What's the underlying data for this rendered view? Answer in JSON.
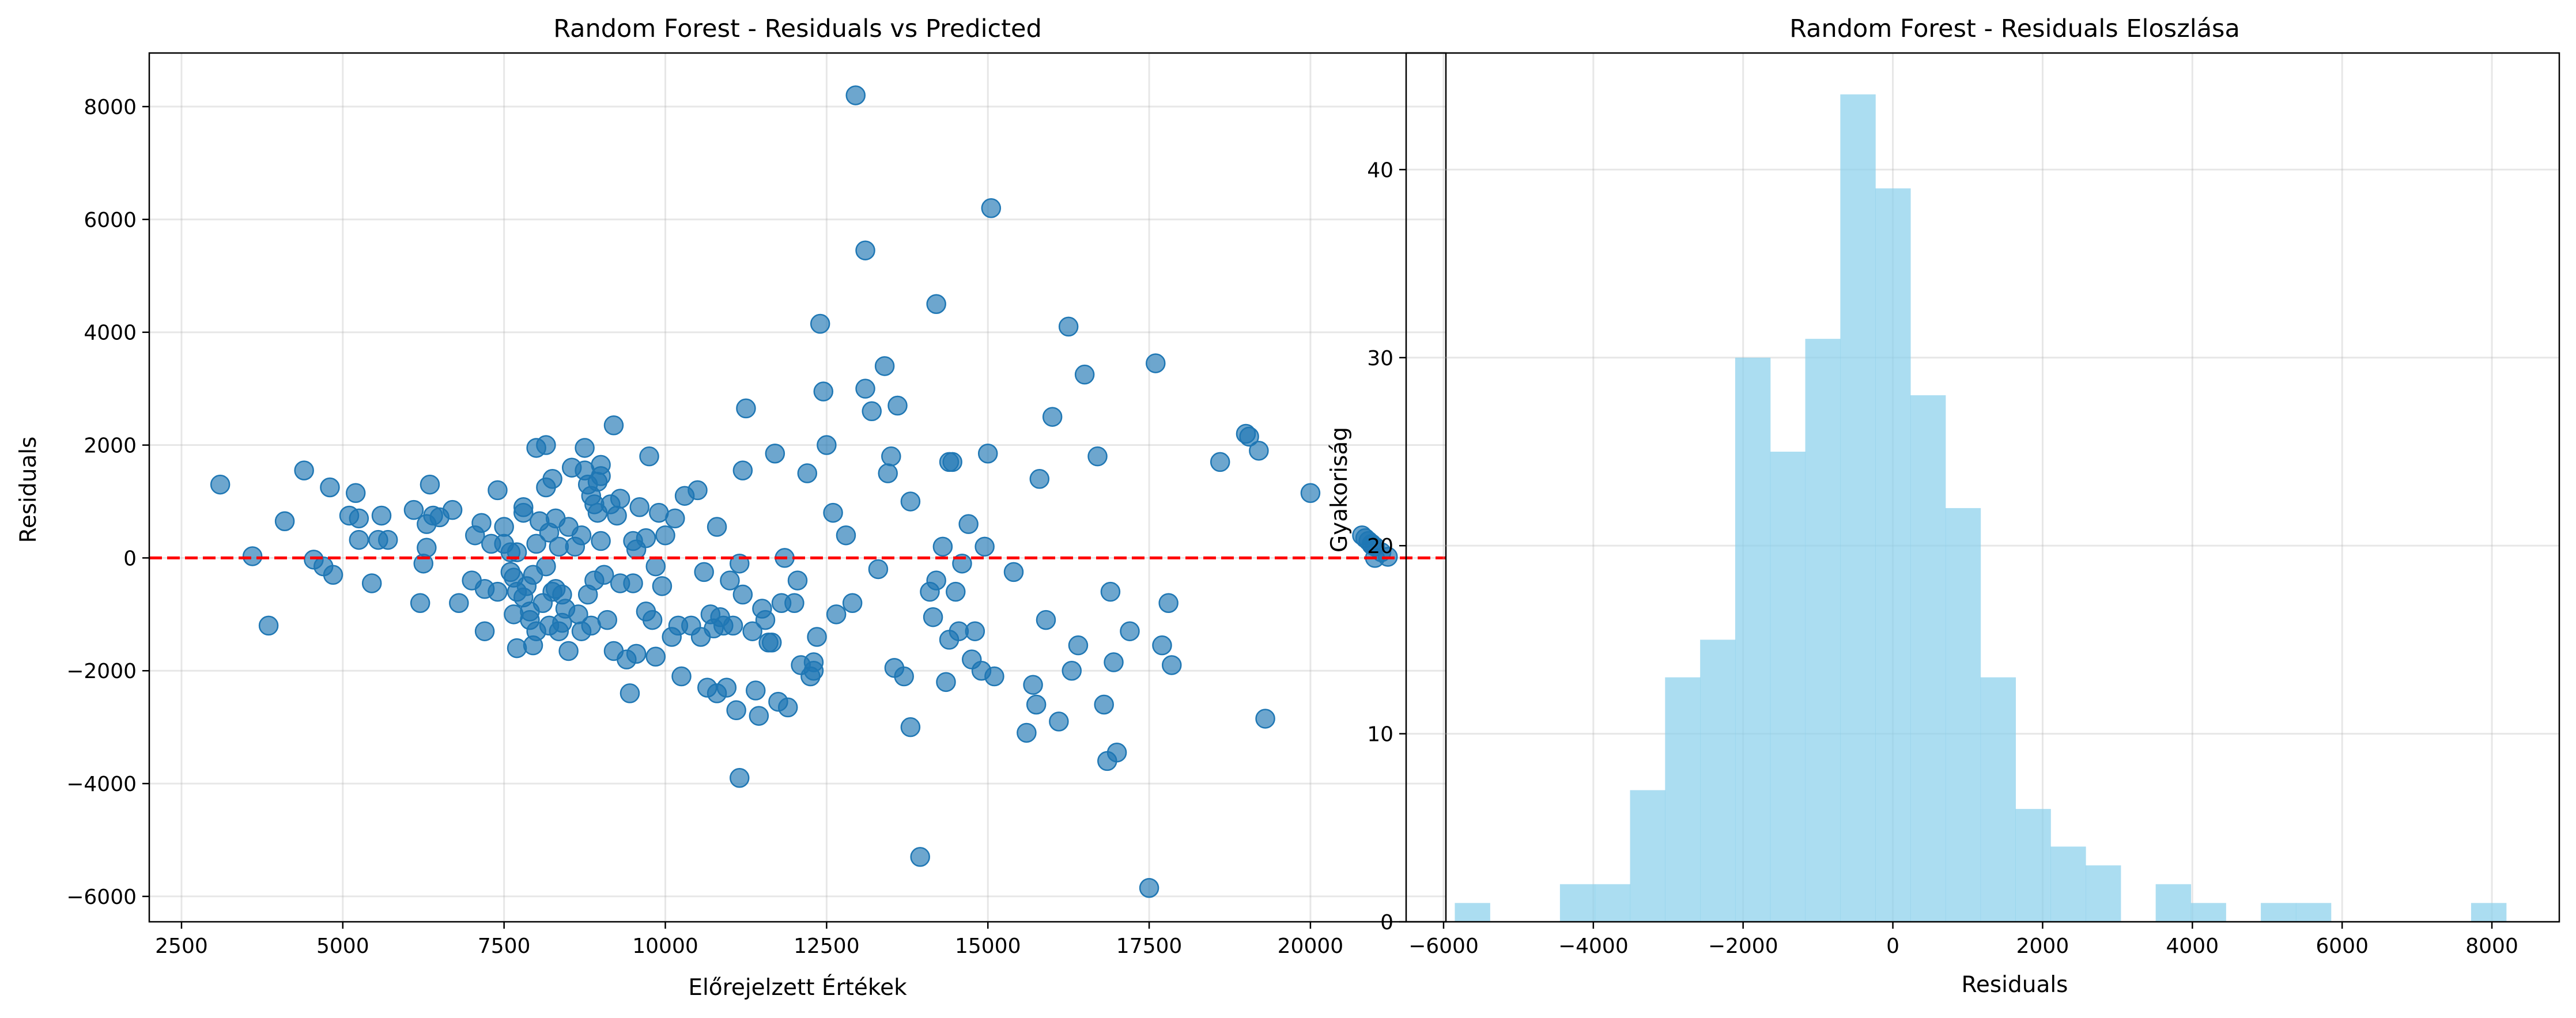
{
  "chart_data": [
    {
      "type": "scatter",
      "title": "Random Forest - Residuals vs Predicted",
      "xlabel": "Előrejelzett Értékek",
      "ylabel": "Residuals",
      "xlim": [
        2000,
        22100
      ],
      "ylim": [
        -6450,
        8950
      ],
      "xticks": [
        2500,
        5000,
        7500,
        10000,
        12500,
        15000,
        17500,
        20000
      ],
      "xtick_labels": [
        "2500",
        "5000",
        "7500",
        "10000",
        "12500",
        "15000",
        "17500",
        "20000"
      ],
      "yticks": [
        -6000,
        -4000,
        -2000,
        0,
        2000,
        4000,
        6000,
        8000
      ],
      "ytick_labels": [
        "−6000",
        "−4000",
        "−2000",
        "0",
        "2000",
        "4000",
        "6000",
        "8000"
      ],
      "grid": true,
      "marker_color": "#1f77b4",
      "reference_line": {
        "y": 0,
        "color": "#ff0000",
        "style": "dashed"
      },
      "points": [
        [
          3100,
          1300
        ],
        [
          3600,
          30
        ],
        [
          3850,
          -1200
        ],
        [
          4100,
          650
        ],
        [
          4400,
          1550
        ],
        [
          4550,
          -30
        ],
        [
          4700,
          -150
        ],
        [
          4800,
          1250
        ],
        [
          4850,
          -300
        ],
        [
          5100,
          750
        ],
        [
          5200,
          1150
        ],
        [
          5250,
          700
        ],
        [
          5250,
          320
        ],
        [
          5450,
          -450
        ],
        [
          5550,
          320
        ],
        [
          5600,
          750
        ],
        [
          5700,
          320
        ],
        [
          6100,
          850
        ],
        [
          6200,
          -800
        ],
        [
          6250,
          -100
        ],
        [
          6300,
          600
        ],
        [
          6300,
          180
        ],
        [
          6350,
          1300
        ],
        [
          6400,
          750
        ],
        [
          6500,
          720
        ],
        [
          6700,
          850
        ],
        [
          6800,
          -800
        ],
        [
          7000,
          -400
        ],
        [
          7050,
          400
        ],
        [
          7150,
          620
        ],
        [
          7200,
          -550
        ],
        [
          7200,
          -1300
        ],
        [
          7300,
          250
        ],
        [
          7400,
          1200
        ],
        [
          7400,
          -600
        ],
        [
          7500,
          550
        ],
        [
          7500,
          250
        ],
        [
          7600,
          100
        ],
        [
          7600,
          -250
        ],
        [
          7650,
          -350
        ],
        [
          7650,
          -1000
        ],
        [
          7700,
          -600
        ],
        [
          7700,
          -1600
        ],
        [
          7700,
          100
        ],
        [
          7800,
          900
        ],
        [
          7800,
          -700
        ],
        [
          7800,
          800
        ],
        [
          7850,
          -500
        ],
        [
          7900,
          -950
        ],
        [
          7900,
          -1100
        ],
        [
          7950,
          -300
        ],
        [
          7950,
          -1550
        ],
        [
          8000,
          250
        ],
        [
          8000,
          -1300
        ],
        [
          8000,
          1950
        ],
        [
          8050,
          650
        ],
        [
          8100,
          -800
        ],
        [
          8150,
          -150
        ],
        [
          8150,
          1250
        ],
        [
          8150,
          2000
        ],
        [
          8200,
          450
        ],
        [
          8200,
          -1200
        ],
        [
          8250,
          -600
        ],
        [
          8250,
          1400
        ],
        [
          8300,
          700
        ],
        [
          8300,
          -550
        ],
        [
          8350,
          -1300
        ],
        [
          8350,
          200
        ],
        [
          8400,
          -650
        ],
        [
          8400,
          -1150
        ],
        [
          8450,
          -900
        ],
        [
          8500,
          550
        ],
        [
          8500,
          -1650
        ],
        [
          8550,
          1600
        ],
        [
          8600,
          200
        ],
        [
          8650,
          -1000
        ],
        [
          8700,
          -1300
        ],
        [
          8700,
          400
        ],
        [
          8750,
          1550
        ],
        [
          8750,
          1950
        ],
        [
          8800,
          1300
        ],
        [
          8800,
          -650
        ],
        [
          8850,
          1100
        ],
        [
          8850,
          -1200
        ],
        [
          8900,
          950
        ],
        [
          8900,
          -400
        ],
        [
          8950,
          800
        ],
        [
          8950,
          1350
        ],
        [
          9000,
          1450
        ],
        [
          9000,
          300
        ],
        [
          9000,
          1650
        ],
        [
          9050,
          -300
        ],
        [
          9100,
          -1100
        ],
        [
          9150,
          950
        ],
        [
          9200,
          -1650
        ],
        [
          9200,
          2350
        ],
        [
          9250,
          750
        ],
        [
          9300,
          1050
        ],
        [
          9300,
          -450
        ],
        [
          9400,
          -1800
        ],
        [
          9450,
          -2400
        ],
        [
          9500,
          300
        ],
        [
          9500,
          -450
        ],
        [
          9550,
          -1700
        ],
        [
          9550,
          150
        ],
        [
          9600,
          900
        ],
        [
          9700,
          -950
        ],
        [
          9700,
          350
        ],
        [
          9750,
          1800
        ],
        [
          9800,
          -1100
        ],
        [
          9850,
          -150
        ],
        [
          9850,
          -1750
        ],
        [
          9900,
          800
        ],
        [
          9950,
          -500
        ],
        [
          10000,
          400
        ],
        [
          10100,
          -1400
        ],
        [
          10150,
          700
        ],
        [
          10200,
          -1200
        ],
        [
          10250,
          -2100
        ],
        [
          10300,
          1100
        ],
        [
          10400,
          -1200
        ],
        [
          10500,
          1200
        ],
        [
          10550,
          -1400
        ],
        [
          10600,
          -250
        ],
        [
          10650,
          -2300
        ],
        [
          10700,
          -1000
        ],
        [
          10750,
          -1250
        ],
        [
          10800,
          -2400
        ],
        [
          10800,
          550
        ],
        [
          10850,
          -1050
        ],
        [
          10900,
          -1200
        ],
        [
          10950,
          -2300
        ],
        [
          11000,
          -400
        ],
        [
          11050,
          -1200
        ],
        [
          11100,
          -2700
        ],
        [
          11150,
          -3900
        ],
        [
          11150,
          -100
        ],
        [
          11200,
          -650
        ],
        [
          11200,
          1550
        ],
        [
          11250,
          2650
        ],
        [
          11350,
          -1300
        ],
        [
          11400,
          -2350
        ],
        [
          11450,
          -2800
        ],
        [
          11500,
          -900
        ],
        [
          11550,
          -1100
        ],
        [
          11600,
          -1500
        ],
        [
          11650,
          -1500
        ],
        [
          11700,
          1850
        ],
        [
          11750,
          -2550
        ],
        [
          11800,
          -800
        ],
        [
          11850,
          0
        ],
        [
          11900,
          -2650
        ],
        [
          12000,
          -800
        ],
        [
          12050,
          -400
        ],
        [
          12100,
          -1900
        ],
        [
          12200,
          1500
        ],
        [
          12250,
          -2100
        ],
        [
          12300,
          -1850
        ],
        [
          12300,
          -2000
        ],
        [
          12350,
          -1400
        ],
        [
          12400,
          4150
        ],
        [
          12450,
          2950
        ],
        [
          12500,
          2000
        ],
        [
          12600,
          800
        ],
        [
          12650,
          -1000
        ],
        [
          12800,
          400
        ],
        [
          12900,
          -800
        ],
        [
          12950,
          8200
        ],
        [
          13100,
          5450
        ],
        [
          13100,
          3000
        ],
        [
          13200,
          2600
        ],
        [
          13300,
          -200
        ],
        [
          13400,
          3400
        ],
        [
          13450,
          1500
        ],
        [
          13500,
          1800
        ],
        [
          13550,
          -1950
        ],
        [
          13600,
          2700
        ],
        [
          13700,
          -2100
        ],
        [
          13800,
          -3000
        ],
        [
          13950,
          -5300
        ],
        [
          14100,
          -600
        ],
        [
          14150,
          -1050
        ],
        [
          14200,
          4500
        ],
        [
          14200,
          -400
        ],
        [
          14300,
          200
        ],
        [
          14350,
          -2200
        ],
        [
          14400,
          -1450
        ],
        [
          14450,
          1700
        ],
        [
          14500,
          -600
        ],
        [
          14550,
          -1300
        ],
        [
          14600,
          -100
        ],
        [
          14700,
          600
        ],
        [
          14750,
          -1800
        ],
        [
          14800,
          -1300
        ],
        [
          14900,
          -2000
        ],
        [
          14950,
          200
        ],
        [
          15000,
          1850
        ],
        [
          15050,
          6200
        ],
        [
          15100,
          -2100
        ],
        [
          15400,
          -250
        ],
        [
          15600,
          -3100
        ],
        [
          15700,
          -2250
        ],
        [
          15750,
          -2600
        ],
        [
          15800,
          1400
        ],
        [
          15900,
          -1100
        ],
        [
          16000,
          2500
        ],
        [
          16100,
          -2900
        ],
        [
          16250,
          4100
        ],
        [
          16300,
          -2000
        ],
        [
          16400,
          -1550
        ],
        [
          16500,
          3250
        ],
        [
          16700,
          1800
        ],
        [
          16800,
          -2600
        ],
        [
          16850,
          -3600
        ],
        [
          16900,
          -600
        ],
        [
          16950,
          -1850
        ],
        [
          17000,
          -3450
        ],
        [
          17200,
          -1300
        ],
        [
          17500,
          -5850
        ],
        [
          17600,
          3450
        ],
        [
          17700,
          -1550
        ],
        [
          17800,
          -800
        ],
        [
          17850,
          -1900
        ],
        [
          18600,
          1700
        ],
        [
          19000,
          2200
        ],
        [
          19050,
          2150
        ],
        [
          19200,
          1900
        ],
        [
          19300,
          -2850
        ],
        [
          20000,
          1150
        ],
        [
          20800,
          400
        ],
        [
          20850,
          350
        ],
        [
          20900,
          300
        ],
        [
          20950,
          250
        ],
        [
          21000,
          0
        ],
        [
          21100,
          100
        ],
        [
          21200,
          20
        ],
        [
          21000,
          200
        ],
        [
          20950,
          230
        ],
        [
          14400,
          1700
        ],
        [
          13800,
          1000
        ]
      ]
    },
    {
      "type": "bar",
      "title": "Random Forest - Residuals Eloszlása",
      "xlabel": "Residuals",
      "ylabel": "Gyakoriság",
      "xlim": [
        -6500,
        8900
      ],
      "ylim": [
        0,
        46.2
      ],
      "xticks": [
        -6000,
        -4000,
        -2000,
        0,
        2000,
        4000,
        6000,
        8000
      ],
      "xtick_labels": [
        "−6000",
        "−4000",
        "−2000",
        "0",
        "2000",
        "4000",
        "6000",
        "8000"
      ],
      "yticks": [
        0,
        10,
        20,
        30,
        40
      ],
      "ytick_labels": [
        "0",
        "10",
        "20",
        "30",
        "40"
      ],
      "grid": true,
      "bar_color": "#87ceeb",
      "bin_start": -5850,
      "bin_width": 468,
      "counts": [
        1,
        0,
        0,
        2,
        2,
        7,
        13,
        15,
        30,
        25,
        31,
        44,
        39,
        28,
        22,
        13,
        6,
        4,
        3,
        0,
        2,
        1,
        0,
        1,
        1,
        0,
        0,
        0,
        0,
        1
      ]
    }
  ]
}
